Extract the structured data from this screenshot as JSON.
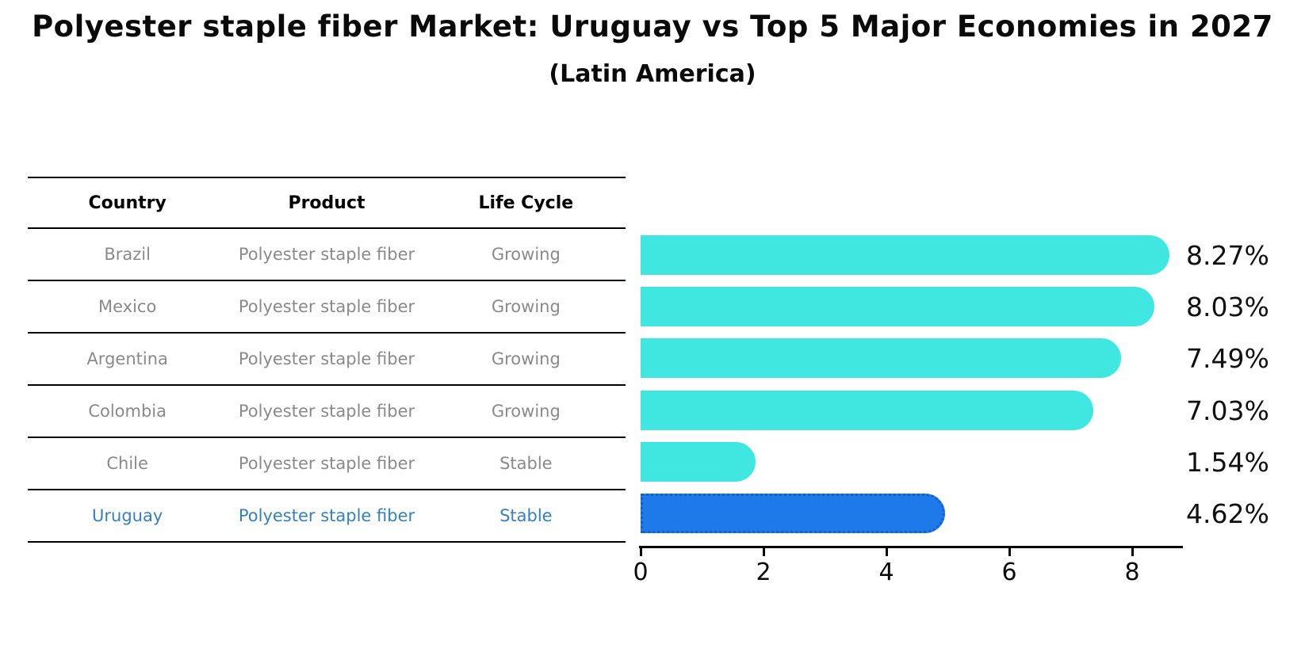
{
  "title": "Polyester staple fiber Market: Uruguay vs Top 5 Major Economies in 2027",
  "subtitle": "(Latin America)",
  "table": {
    "headers": [
      "Country",
      "Product",
      "Life Cycle"
    ],
    "rows": [
      {
        "country": "Brazil",
        "product": "Polyester staple fiber",
        "life_cycle": "Growing",
        "highlight": false
      },
      {
        "country": "Mexico",
        "product": "Polyester staple fiber",
        "life_cycle": "Growing",
        "highlight": false
      },
      {
        "country": "Argentina",
        "product": "Polyester staple fiber",
        "life_cycle": "Growing",
        "highlight": false
      },
      {
        "country": "Colombia",
        "product": "Polyester staple fiber",
        "life_cycle": "Growing",
        "highlight": false
      },
      {
        "country": "Chile",
        "product": "Polyester staple fiber",
        "life_cycle": "Stable",
        "highlight": false
      },
      {
        "country": "Uruguay",
        "product": "Polyester staple fiber",
        "life_cycle": "Stable",
        "highlight": true
      }
    ]
  },
  "chart_data": {
    "type": "bar",
    "orientation": "horizontal",
    "title": "Polyester staple fiber Market: Uruguay vs Top 5 Major Economies in 2027",
    "subtitle": "(Latin America)",
    "categories": [
      "Brazil",
      "Mexico",
      "Argentina",
      "Colombia",
      "Chile",
      "Uruguay"
    ],
    "values": [
      8.27,
      8.03,
      7.49,
      7.03,
      1.54,
      4.62
    ],
    "value_labels": [
      "8.27%",
      "8.03%",
      "7.49%",
      "7.03%",
      "1.54%",
      "4.62%"
    ],
    "xticks": [
      "0",
      "2",
      "4",
      "6",
      "8"
    ],
    "xtick_values": [
      0,
      2,
      4,
      6,
      8
    ],
    "xlim": [
      0,
      8.8
    ],
    "grid": false,
    "legend": "none",
    "highlight_category": "Uruguay",
    "colors": {
      "bar": "#40E7E0",
      "highlight_bar": "#1E7AE8",
      "highlight_border": "#0F5FD7",
      "text_gray": "#8A8A8A",
      "highlight_text": "#3480C3"
    }
  }
}
